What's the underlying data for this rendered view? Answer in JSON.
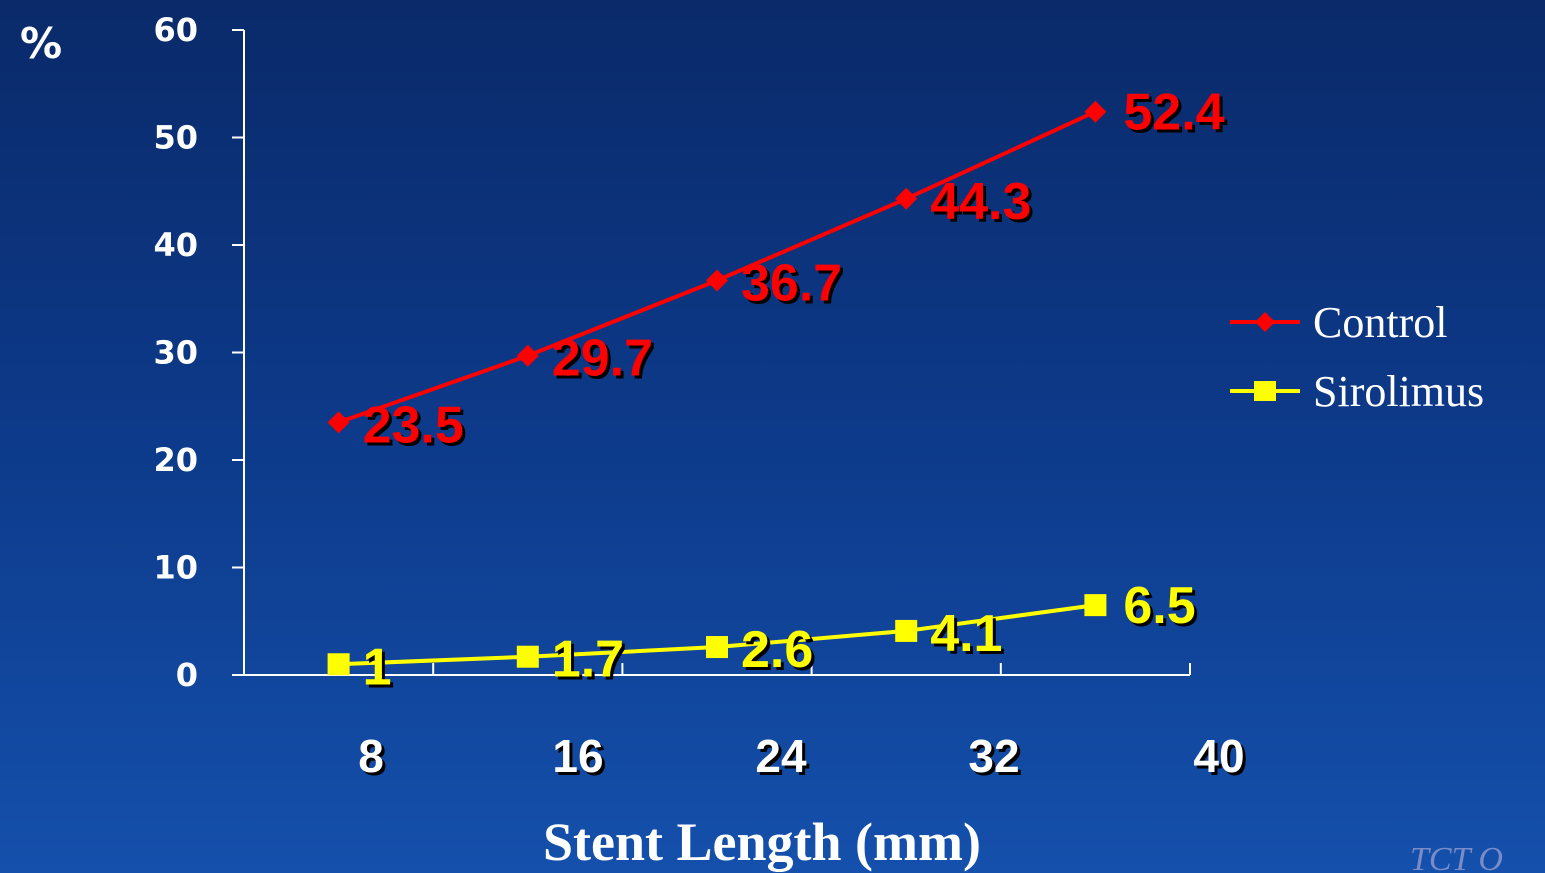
{
  "chart_data": {
    "type": "line",
    "ylabel": "%",
    "xlabel": "Stent Length (mm)",
    "ylim": [
      0,
      60
    ],
    "yticks": [
      0,
      10,
      20,
      30,
      40,
      50,
      60
    ],
    "xticks": [
      "8",
      "16",
      "24",
      "32",
      "40"
    ],
    "x": [
      "8",
      "16",
      "24",
      "32",
      "40"
    ],
    "legend_position": "right",
    "series": [
      {
        "name": "Control",
        "color": "#ff0000",
        "marker": "diamond",
        "values": [
          23.5,
          29.7,
          36.7,
          44.3,
          52.4
        ],
        "labels": [
          "23.5",
          "29.7",
          "36.7",
          "44.3",
          "52.4"
        ]
      },
      {
        "name": "Sirolimus",
        "color": "#ffff00",
        "marker": "square",
        "values": [
          1,
          1.7,
          2.6,
          4.1,
          6.5
        ],
        "labels": [
          "1",
          "1.7",
          "2.6",
          "4.1",
          "6.5"
        ]
      }
    ]
  },
  "watermark": "TCT O"
}
